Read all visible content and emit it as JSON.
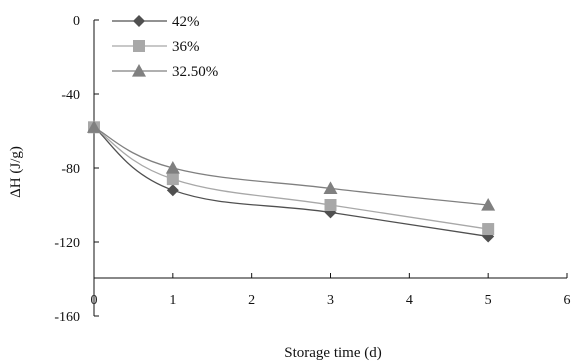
{
  "chart_data": {
    "type": "line",
    "title": "",
    "xlabel": "Storage time (d)",
    "ylabel": "ΔH (J/g)",
    "xlim": [
      0,
      6
    ],
    "ylim": [
      -160,
      0
    ],
    "xticks": [
      0,
      1,
      2,
      3,
      4,
      5,
      6
    ],
    "yticks": [
      0,
      -40,
      -80,
      -120,
      -160
    ],
    "legend_position": "top-left",
    "grid": false,
    "series": [
      {
        "name": "42%",
        "color": "#505050",
        "marker": "diamond",
        "x": [
          0,
          1,
          3,
          5
        ],
        "y": [
          -58,
          -92,
          -104,
          -117
        ]
      },
      {
        "name": "36%",
        "color": "#a8a8a8",
        "marker": "square",
        "x": [
          0,
          1,
          3,
          5
        ],
        "y": [
          -58,
          -86,
          -100,
          -113
        ]
      },
      {
        "name": "32.50%",
        "color": "#808080",
        "marker": "triangle",
        "x": [
          0,
          1,
          3,
          5
        ],
        "y": [
          -58,
          -80,
          -91,
          -100
        ]
      }
    ]
  }
}
